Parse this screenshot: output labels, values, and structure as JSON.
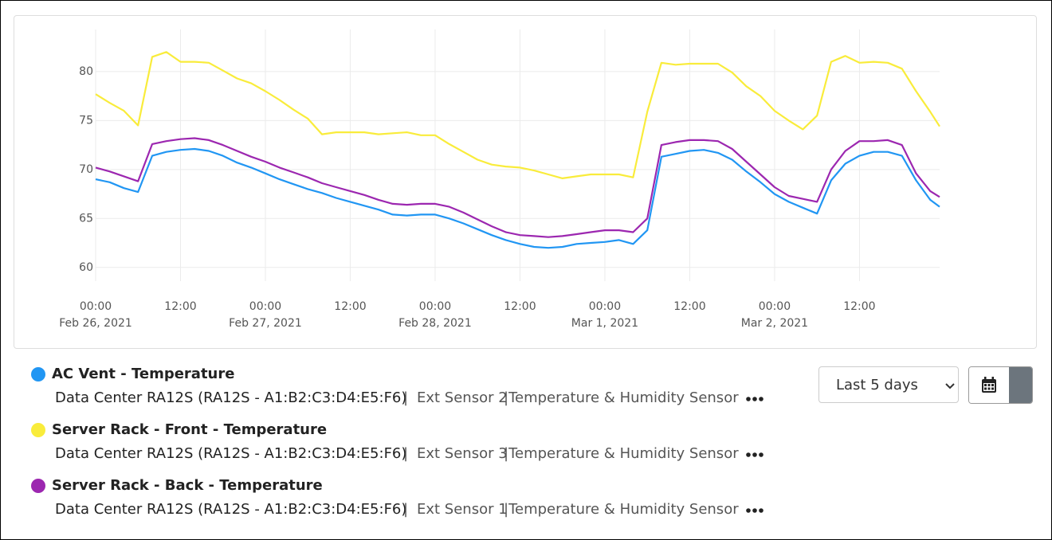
{
  "chart_data": {
    "type": "line",
    "x": [
      "2021-02-26T00:00",
      "2021-02-26T02:00",
      "2021-02-26T04:00",
      "2021-02-26T06:00",
      "2021-02-26T08:00",
      "2021-02-26T10:00",
      "2021-02-26T12:00",
      "2021-02-26T14:00",
      "2021-02-26T16:00",
      "2021-02-26T18:00",
      "2021-02-26T20:00",
      "2021-02-26T22:00",
      "2021-02-27T00:00",
      "2021-02-27T02:00",
      "2021-02-27T04:00",
      "2021-02-27T06:00",
      "2021-02-27T08:00",
      "2021-02-27T10:00",
      "2021-02-27T12:00",
      "2021-02-27T14:00",
      "2021-02-27T16:00",
      "2021-02-27T18:00",
      "2021-02-27T20:00",
      "2021-02-27T22:00",
      "2021-02-28T00:00",
      "2021-02-28T02:00",
      "2021-02-28T04:00",
      "2021-02-28T06:00",
      "2021-02-28T08:00",
      "2021-02-28T10:00",
      "2021-02-28T12:00",
      "2021-02-28T14:00",
      "2021-02-28T16:00",
      "2021-02-28T18:00",
      "2021-02-28T20:00",
      "2021-02-28T22:00",
      "2021-03-01T00:00",
      "2021-03-01T02:00",
      "2021-03-01T04:00",
      "2021-03-01T06:00",
      "2021-03-01T08:00",
      "2021-03-01T10:00",
      "2021-03-01T12:00",
      "2021-03-01T14:00",
      "2021-03-01T16:00",
      "2021-03-01T18:00",
      "2021-03-01T20:00",
      "2021-03-01T22:00",
      "2021-03-02T00:00",
      "2021-03-02T02:00",
      "2021-03-02T04:00",
      "2021-03-02T06:00",
      "2021-03-02T08:00",
      "2021-03-02T10:00",
      "2021-03-02T12:00",
      "2021-03-02T14:00",
      "2021-03-02T16:00",
      "2021-03-02T18:00",
      "2021-03-02T20:00",
      "2021-03-02T22:00",
      "2021-03-02T23:20"
    ],
    "xlim": [
      "2021-02-26T00:00",
      "2021-03-02T23:20"
    ],
    "xticks": [
      {
        "value": "2021-02-26T00:00",
        "label": "00:00",
        "date": "Feb 26, 2021"
      },
      {
        "value": "2021-02-26T12:00",
        "label": "12:00"
      },
      {
        "value": "2021-02-27T00:00",
        "label": "00:00",
        "date": "Feb 27, 2021"
      },
      {
        "value": "2021-02-27T12:00",
        "label": "12:00"
      },
      {
        "value": "2021-02-28T00:00",
        "label": "00:00",
        "date": "Feb 28, 2021"
      },
      {
        "value": "2021-02-28T12:00",
        "label": "12:00"
      },
      {
        "value": "2021-03-01T00:00",
        "label": "00:00",
        "date": "Mar 1, 2021"
      },
      {
        "value": "2021-03-01T12:00",
        "label": "12:00"
      },
      {
        "value": "2021-03-02T00:00",
        "label": "00:00",
        "date": "Mar 2, 2021"
      },
      {
        "value": "2021-03-02T12:00",
        "label": "12:00"
      }
    ],
    "ylim": [
      58.6,
      84.3
    ],
    "yticks": [
      60,
      65,
      70,
      75,
      80
    ],
    "grid": true,
    "legend_separator": "|",
    "series": [
      {
        "name": "AC Vent - Temperature",
        "color": "#2196f3",
        "device": "Data Center RA12S (RA12S - A1:B2:C3:D4:E5:F6)",
        "sensor": "Ext Sensor 2",
        "sensor_type": "|Temperature & Humidity Sensor",
        "values": [
          69.0,
          68.7,
          68.1,
          67.7,
          71.4,
          71.8,
          72.0,
          72.1,
          71.9,
          71.4,
          70.7,
          70.2,
          69.6,
          69.0,
          68.5,
          68.0,
          67.6,
          67.1,
          66.7,
          66.3,
          65.9,
          65.4,
          65.3,
          65.4,
          65.4,
          65.0,
          64.5,
          63.9,
          63.3,
          62.8,
          62.4,
          62.1,
          62.0,
          62.1,
          62.4,
          62.5,
          62.6,
          62.8,
          62.4,
          63.8,
          71.3,
          71.6,
          71.9,
          72.0,
          71.7,
          71.0,
          69.8,
          68.7,
          67.5,
          66.7,
          66.1,
          65.5,
          68.9,
          70.6,
          71.4,
          71.8,
          71.8,
          71.4,
          68.9,
          66.9,
          66.2
        ]
      },
      {
        "name": "Server Rack - Front - Temperature",
        "color": "#f9ec3b",
        "device": "Data Center RA12S (RA12S - A1:B2:C3:D4:E5:F6)",
        "sensor": "Ext Sensor 3",
        "sensor_type": "|Temperature & Humidity Sensor",
        "values": [
          77.7,
          76.8,
          76.0,
          74.5,
          81.5,
          82.0,
          81.0,
          81.0,
          80.9,
          80.1,
          79.3,
          78.8,
          78.0,
          77.1,
          76.1,
          75.2,
          73.6,
          73.8,
          73.8,
          73.8,
          73.6,
          73.7,
          73.8,
          73.5,
          73.5,
          72.6,
          71.8,
          71.0,
          70.5,
          70.3,
          70.2,
          69.9,
          69.5,
          69.1,
          69.3,
          69.5,
          69.5,
          69.5,
          69.2,
          75.9,
          80.9,
          80.7,
          80.8,
          80.8,
          80.8,
          79.9,
          78.5,
          77.5,
          76.0,
          75.0,
          74.1,
          75.5,
          81.0,
          81.6,
          80.9,
          81.0,
          80.9,
          80.3,
          78.0,
          75.9,
          74.4
        ]
      },
      {
        "name": "Server Rack - Back - Temperature",
        "color": "#9c27b0",
        "device": "Data Center RA12S (RA12S - A1:B2:C3:D4:E5:F6)",
        "sensor": "Ext Sensor 1",
        "sensor_type": "|Temperature & Humidity Sensor",
        "values": [
          70.2,
          69.8,
          69.3,
          68.8,
          72.6,
          72.9,
          73.1,
          73.2,
          73.0,
          72.5,
          71.9,
          71.3,
          70.8,
          70.2,
          69.7,
          69.2,
          68.6,
          68.2,
          67.8,
          67.4,
          66.9,
          66.5,
          66.4,
          66.5,
          66.5,
          66.2,
          65.6,
          64.9,
          64.2,
          63.6,
          63.3,
          63.2,
          63.1,
          63.2,
          63.4,
          63.6,
          63.8,
          63.8,
          63.6,
          65.0,
          72.5,
          72.8,
          73.0,
          73.0,
          72.9,
          72.1,
          70.8,
          69.5,
          68.2,
          67.3,
          67.0,
          66.7,
          70.0,
          71.9,
          72.9,
          72.9,
          73.0,
          72.5,
          69.6,
          67.8,
          67.2
        ]
      }
    ]
  },
  "controls": {
    "range_select": "Last 5 days"
  }
}
